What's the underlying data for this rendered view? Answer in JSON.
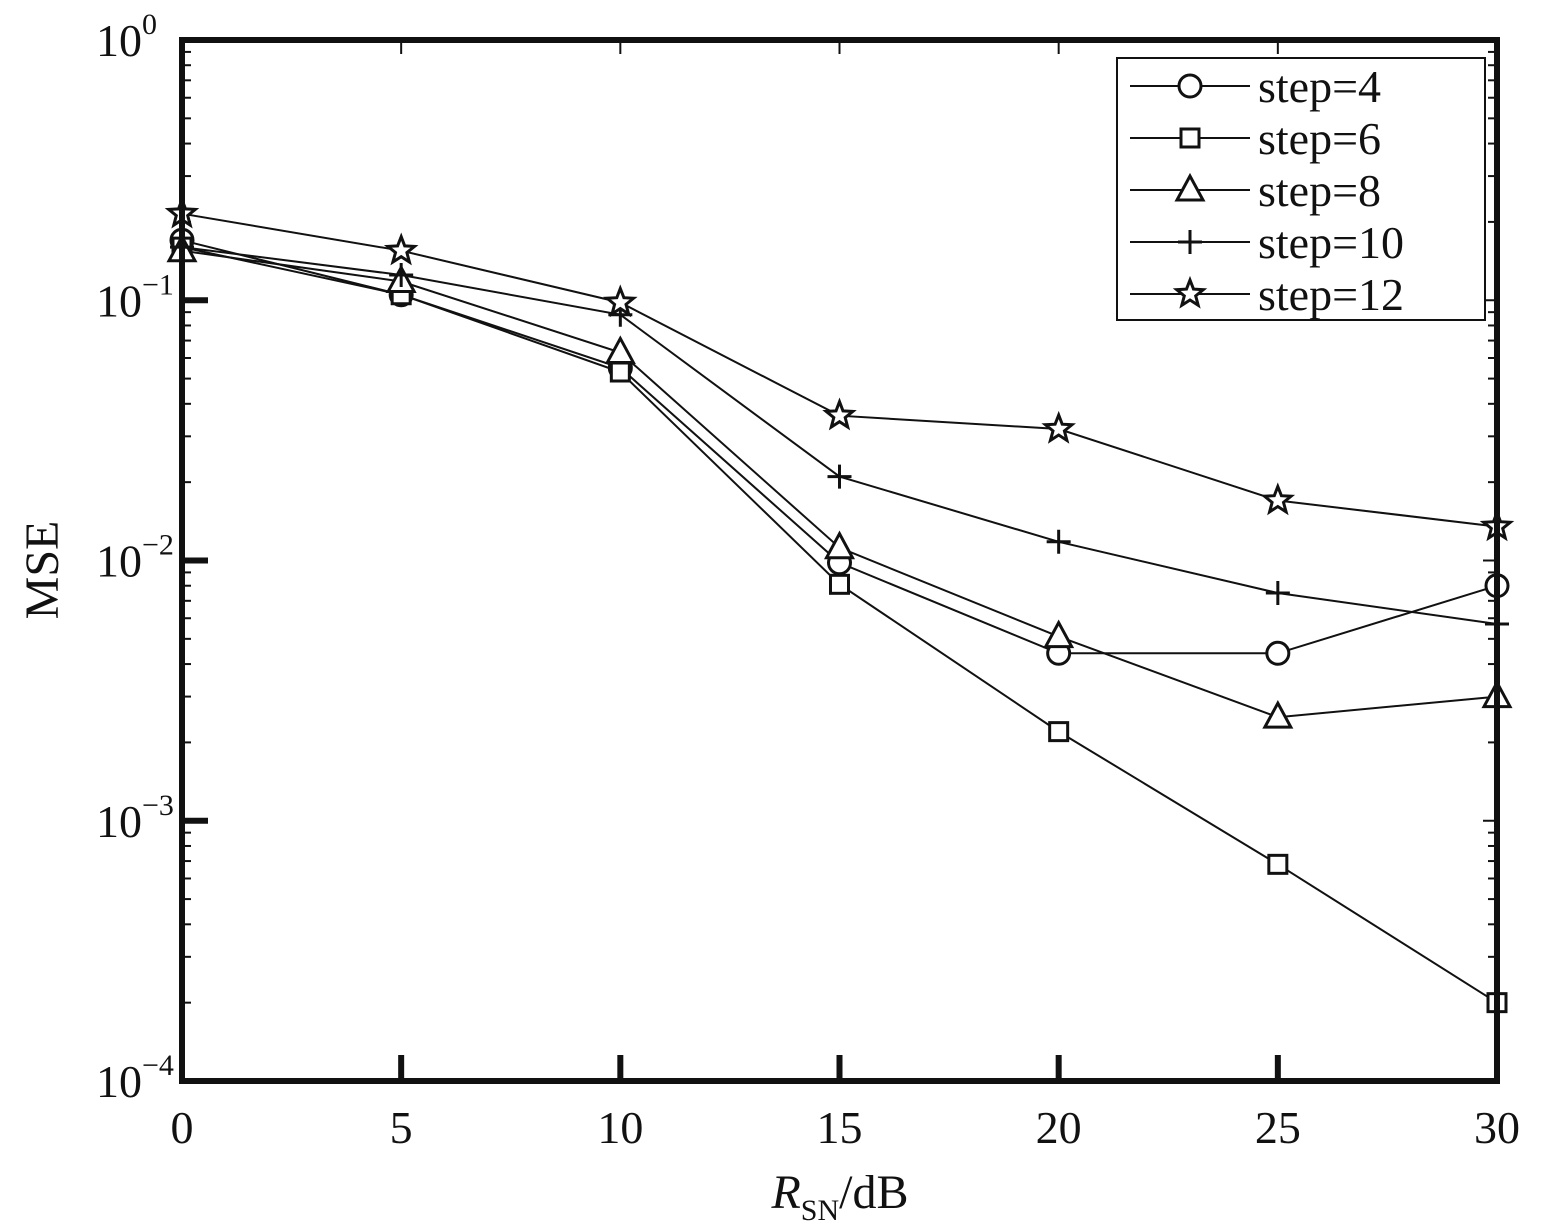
{
  "chart_data": {
    "type": "line",
    "xlabel_main": "R",
    "xlabel_sub": "SN",
    "xlabel_unit": "/dB",
    "ylabel": "MSE",
    "xlim": [
      0,
      30
    ],
    "ylim": [
      0.0001,
      1
    ],
    "yscale": "log",
    "xticks": [
      0,
      5,
      10,
      15,
      20,
      25,
      30
    ],
    "xtick_labels": [
      "0",
      "5",
      "10",
      "15",
      "20",
      "25",
      "30"
    ],
    "yticks": [
      {
        "exp": -4,
        "base": "10",
        "sup": "−4"
      },
      {
        "exp": -3,
        "base": "10",
        "sup": "−3"
      },
      {
        "exp": -2,
        "base": "10",
        "sup": "−2"
      },
      {
        "exp": -1,
        "base": "10",
        "sup": "−1"
      },
      {
        "exp": 0,
        "base": "10",
        "sup": "0"
      }
    ],
    "grid": false,
    "legend_position": "top-right",
    "x": [
      0,
      5,
      10,
      15,
      20,
      25,
      30
    ],
    "series": [
      {
        "name": "step=4",
        "marker": "circle",
        "values": [
          0.17,
          0.105,
          0.055,
          0.0098,
          0.0044,
          0.0044,
          0.008
        ]
      },
      {
        "name": "step=6",
        "marker": "square",
        "values": [
          0.16,
          0.105,
          0.053,
          0.0081,
          0.0022,
          0.00068,
          0.0002
        ]
      },
      {
        "name": "step=8",
        "marker": "triangle",
        "values": [
          0.155,
          0.118,
          0.063,
          0.0112,
          0.0051,
          0.0025,
          0.003
        ]
      },
      {
        "name": "step=10",
        "marker": "plus",
        "values": [
          0.16,
          0.125,
          0.088,
          0.021,
          0.0118,
          0.0075,
          0.0057
        ]
      },
      {
        "name": "step=12",
        "marker": "star",
        "values": [
          0.215,
          0.155,
          0.098,
          0.036,
          0.032,
          0.017,
          0.0135
        ]
      }
    ]
  }
}
